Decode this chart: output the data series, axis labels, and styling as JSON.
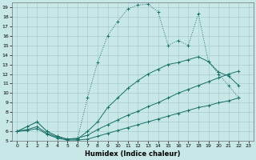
{
  "xlabel": "Humidex (Indice chaleur)",
  "background_color": "#c8e8e8",
  "grid_color": "#a8cece",
  "line_color": "#1a7068",
  "xlim": [
    -0.5,
    23.5
  ],
  "ylim": [
    5,
    19.5
  ],
  "xticks": [
    0,
    1,
    2,
    3,
    4,
    5,
    6,
    7,
    8,
    9,
    10,
    11,
    12,
    13,
    14,
    15,
    16,
    17,
    18,
    19,
    20,
    21,
    22,
    23
  ],
  "yticks": [
    5,
    6,
    7,
    8,
    9,
    10,
    11,
    12,
    13,
    14,
    15,
    16,
    17,
    18,
    19
  ],
  "c1x": [
    0,
    1,
    2,
    3,
    4,
    5,
    6,
    7,
    8,
    9,
    10,
    11,
    12,
    13,
    14,
    15,
    16,
    17,
    18,
    19,
    20,
    21,
    22
  ],
  "c1y": [
    6,
    6.5,
    7,
    6,
    5.5,
    5.2,
    5.2,
    9.5,
    13.2,
    16,
    17.5,
    18.8,
    19.2,
    19.3,
    18.5,
    15.0,
    15.5,
    15.0,
    18.3,
    13.3,
    12.0,
    10.8,
    9.5
  ],
  "c2x": [
    0,
    1,
    2,
    3,
    4,
    5,
    6,
    7,
    8,
    9,
    10,
    11,
    12,
    13,
    14,
    15,
    16,
    17,
    18,
    19,
    20,
    21,
    22
  ],
  "c2y": [
    6,
    6.5,
    7,
    6,
    5.5,
    5.2,
    5.2,
    6.0,
    7.0,
    8.5,
    9.5,
    10.5,
    11.3,
    12.0,
    12.5,
    13.0,
    13.2,
    13.5,
    13.8,
    13.3,
    12.2,
    11.8,
    10.8
  ],
  "c3x": [
    0,
    1,
    2,
    3,
    4,
    5,
    6,
    7,
    8,
    9,
    10,
    11,
    12,
    13,
    14,
    15,
    16,
    17,
    18,
    19,
    20,
    21,
    22
  ],
  "c3y": [
    6,
    6.2,
    6.5,
    5.8,
    5.4,
    5.2,
    5.3,
    5.6,
    6.2,
    6.7,
    7.2,
    7.7,
    8.1,
    8.6,
    9.0,
    9.5,
    10.0,
    10.4,
    10.8,
    11.2,
    11.6,
    12.0,
    12.3
  ],
  "c4x": [
    0,
    1,
    2,
    3,
    4,
    5,
    6,
    7,
    8,
    9,
    10,
    11,
    12,
    13,
    14,
    15,
    16,
    17,
    18,
    19,
    20,
    21,
    22
  ],
  "c4y": [
    6,
    6.1,
    6.3,
    5.7,
    5.3,
    5.1,
    5.1,
    5.2,
    5.5,
    5.8,
    6.1,
    6.4,
    6.7,
    7.0,
    7.3,
    7.6,
    7.9,
    8.2,
    8.5,
    8.7,
    9.0,
    9.2,
    9.5
  ]
}
